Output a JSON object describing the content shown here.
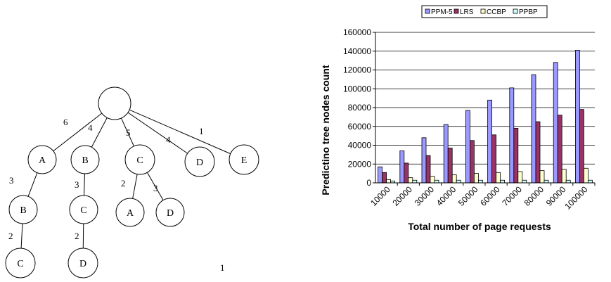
{
  "tree": {
    "nodes": [
      {
        "id": "root",
        "label": ""
      },
      {
        "id": "a",
        "label": "A"
      },
      {
        "id": "b",
        "label": "B"
      },
      {
        "id": "c",
        "label": "C"
      },
      {
        "id": "d",
        "label": "D"
      },
      {
        "id": "e",
        "label": "E"
      },
      {
        "id": "ab",
        "label": "B"
      },
      {
        "id": "bc",
        "label": "C"
      },
      {
        "id": "ca",
        "label": "A"
      },
      {
        "id": "cd",
        "label": "D"
      },
      {
        "id": "abc",
        "label": "C"
      },
      {
        "id": "bcd",
        "label": "D"
      }
    ],
    "edges": [
      {
        "from": "root",
        "to": "a",
        "label": "6"
      },
      {
        "from": "root",
        "to": "b",
        "label": "4"
      },
      {
        "from": "root",
        "to": "c",
        "label": "5"
      },
      {
        "from": "root",
        "to": "d",
        "label": "4"
      },
      {
        "from": "root",
        "to": "e",
        "label": "1"
      },
      {
        "from": "a",
        "to": "ab",
        "label": "3"
      },
      {
        "from": "b",
        "to": "bc",
        "label": "3"
      },
      {
        "from": "c",
        "to": "ca",
        "label": "2"
      },
      {
        "from": "c",
        "to": "cd",
        "label": "3"
      },
      {
        "from": "ab",
        "to": "abc",
        "label": "2"
      },
      {
        "from": "bc",
        "to": "bcd",
        "label": "2"
      }
    ],
    "caption": "1"
  },
  "chart_data": {
    "type": "bar",
    "title": "",
    "xlabel": "Total number of page requests",
    "ylabel": "Predictino tree nodes count",
    "categories": [
      "10000",
      "20000",
      "30000",
      "40000",
      "50000",
      "60000",
      "70000",
      "80000",
      "90000",
      "100000"
    ],
    "ylim": [
      0,
      160000
    ],
    "yticks": [
      "0",
      "20000",
      "40000",
      "60000",
      "80000",
      "100000",
      "120000",
      "140000",
      "160000"
    ],
    "grid": true,
    "legend_position": "top",
    "series": [
      {
        "name": "PPM-5",
        "color": "#9999ff",
        "values": [
          17000,
          34000,
          48000,
          62000,
          77000,
          88000,
          101000,
          115000,
          128000,
          141000
        ]
      },
      {
        "name": "LRS",
        "color": "#993366",
        "values": [
          11000,
          21000,
          29000,
          37000,
          45000,
          51000,
          58000,
          65000,
          72000,
          78000
        ]
      },
      {
        "name": "CCBP",
        "color": "#ffffcc",
        "values": [
          3500,
          5500,
          7000,
          8500,
          10000,
          11000,
          12000,
          13000,
          14500,
          15500
        ]
      },
      {
        "name": "PPBP",
        "color": "#ccffff",
        "values": [
          2000,
          2800,
          2800,
          2800,
          2800,
          2800,
          2800,
          2800,
          2800,
          2800
        ]
      }
    ]
  }
}
